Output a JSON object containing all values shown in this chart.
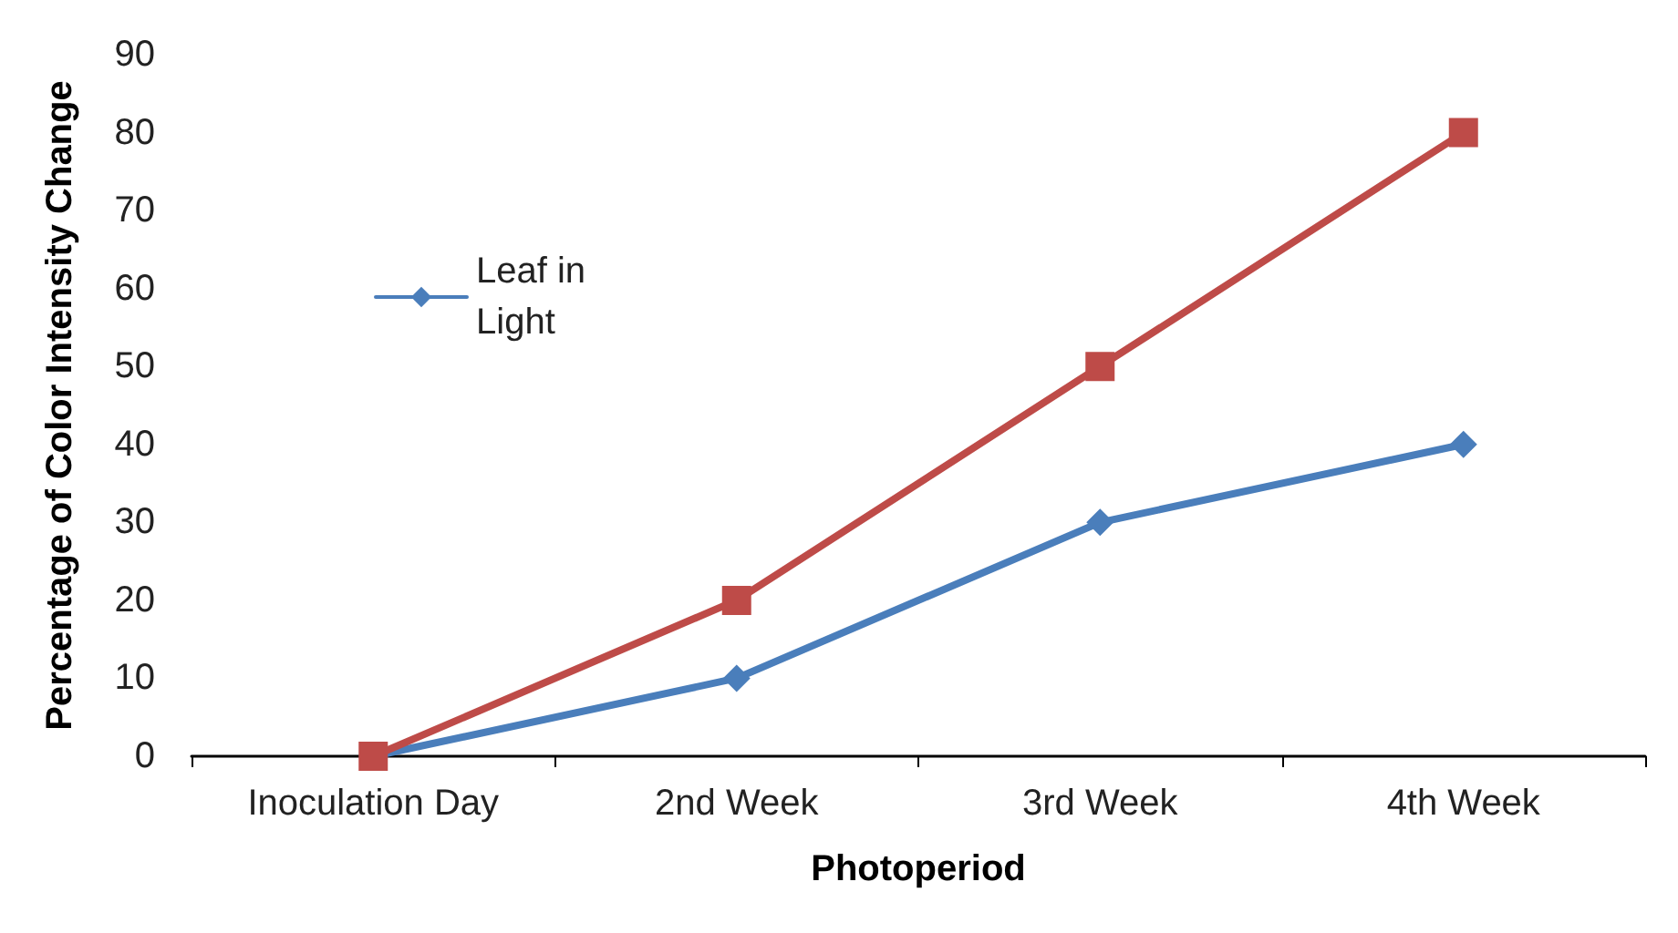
{
  "chart_data": {
    "type": "line",
    "xlabel": "Photoperiod",
    "ylabel": "Percentage of Color Intensity Change",
    "categories": [
      "Inoculation Day",
      "2nd Week",
      "3rd Week",
      "4th Week"
    ],
    "series": [
      {
        "name": "Leaf in Light",
        "color": "#4a7ebb",
        "values": [
          0,
          10,
          30,
          40
        ],
        "marker": "diamond"
      },
      {
        "color": "#be4b48",
        "values": [
          0,
          20,
          50,
          80
        ],
        "marker": "square"
      }
    ],
    "ylim": [
      0,
      90
    ],
    "yticks": [
      0,
      10,
      20,
      30,
      40,
      50,
      60,
      70,
      80,
      90
    ],
    "grid": false,
    "legend": "top left",
    "line_style": "solid"
  }
}
